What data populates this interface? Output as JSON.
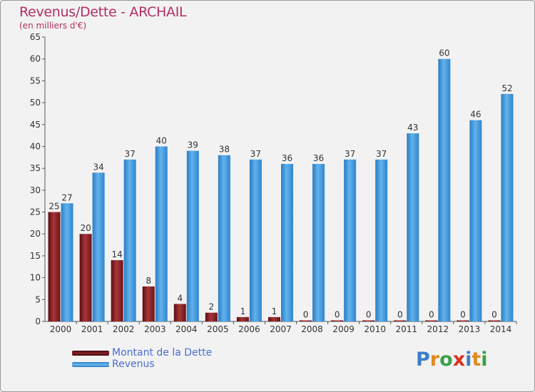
{
  "chart_data": {
    "type": "bar",
    "title": "Revenus/Dette - ARCHAIL",
    "subtitle": "(en milliers d'€)",
    "categories": [
      "2000",
      "2001",
      "2002",
      "2003",
      "2004",
      "2005",
      "2006",
      "2007",
      "2008",
      "2009",
      "2010",
      "2011",
      "2012",
      "2013",
      "2014"
    ],
    "series": [
      {
        "name": "Montant de la Dette",
        "color": "#7a1a1e",
        "values": [
          25,
          20,
          14,
          8,
          4,
          2,
          1,
          1,
          0,
          0,
          0,
          0,
          0,
          0,
          0
        ]
      },
      {
        "name": "Revenus",
        "color": "#4a9fe0",
        "values": [
          27,
          34,
          37,
          40,
          39,
          38,
          37,
          36,
          36,
          37,
          37,
          43,
          60,
          46,
          52
        ]
      }
    ],
    "ylim": [
      0,
      65
    ],
    "yticks": [
      0,
      5,
      10,
      15,
      20,
      25,
      30,
      35,
      40,
      45,
      50,
      55,
      60,
      65
    ],
    "grid": false,
    "legend_position": "bottom-left"
  },
  "logo": {
    "letters": [
      "P",
      "r",
      "o",
      "x",
      "i",
      "t",
      "i"
    ],
    "colors": [
      "#3a7fc8",
      "#e08a1e",
      "#3aa04a",
      "#d8321e",
      "#3a7fc8",
      "#e08a1e",
      "#3aa04a"
    ]
  }
}
